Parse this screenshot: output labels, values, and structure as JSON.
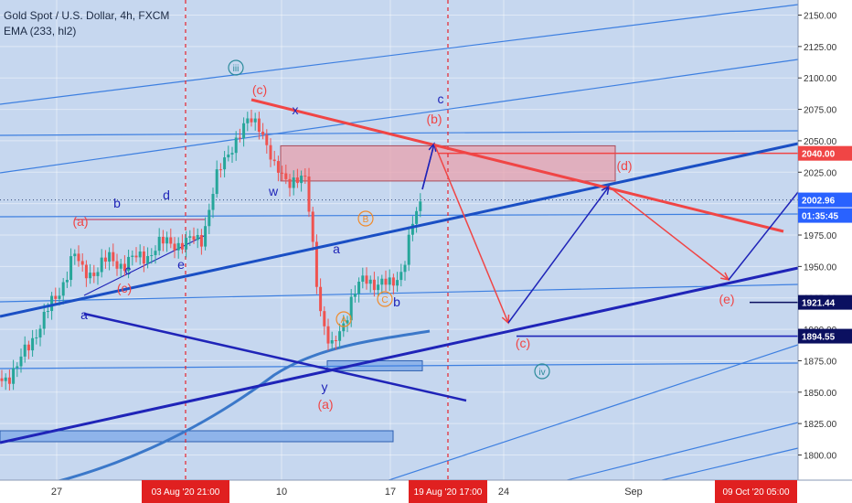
{
  "header": {
    "title": "Gold Spot / U.S. Dollar, 4h, FXCM",
    "indicator": "EMA (233, hl2)"
  },
  "colors": {
    "background": "#c6d7ef",
    "candle_up": "#26a69a",
    "candle_down": "#ef5350",
    "trend_blue": "#1a4fc4",
    "channel_dark": "#1f24b8",
    "thin_blue": "#3d7fe0",
    "red_line": "#f04545",
    "ema": "#3b78c9",
    "resistance_zone": "#e8a2ae",
    "support_zone": "#8fb4ea"
  },
  "chart_data": {
    "type": "candlestick",
    "symbol": "Gold Spot / U.S. Dollar",
    "timeframe": "4h",
    "exchange": "FXCM",
    "ylim": [
      1780,
      2162
    ],
    "y_ticks": [
      1800,
      1825,
      1850,
      1875,
      1900,
      1925,
      1950,
      1975,
      2000,
      2025,
      2050,
      2075,
      2100,
      2125,
      2150
    ],
    "y_tick_labels": [
      "1800.00",
      "1825.00",
      "1850.00",
      "1875.00",
      "1900.00",
      "1925.00",
      "1950.00",
      "1975.00",
      "2000.00",
      "2025.00",
      "2050.00",
      "2075.00",
      "2100.00",
      "2125.00",
      "2150.00"
    ],
    "x_tick_labels": [
      "27",
      "10",
      "17",
      "24",
      "Sep"
    ],
    "x_highlight_labels": [
      "03 Aug '20  21:00",
      "19 Aug '20  17:00",
      "09 Oct '20  05:00"
    ],
    "price_labels": [
      {
        "value": 2040.0,
        "text": "2040.00",
        "kind": "red"
      },
      {
        "value": 2002.96,
        "text": "2002.96",
        "kind": "blue"
      },
      {
        "value": 2002.96,
        "text": "01:35:45",
        "kind": "countdown"
      },
      {
        "value": 1921.44,
        "text": "1921.44",
        "kind": "dark"
      },
      {
        "value": 1894.55,
        "text": "1894.55",
        "kind": "dark"
      }
    ],
    "wave_labels": [
      "iii",
      "(c)",
      "c",
      "x",
      "(b)",
      "(d)",
      "b",
      "d",
      "(a)",
      "w",
      "a",
      "B",
      "c",
      "e",
      "(c)",
      "A",
      "C",
      "b",
      "y",
      "(a)",
      "(c)",
      "(e)",
      "iv",
      "a"
    ],
    "key_levels": {
      "resistance_zone": [
        2018,
        2046
      ],
      "support_zone": [
        1867,
        1875
      ],
      "current_price": 2002.96
    }
  }
}
